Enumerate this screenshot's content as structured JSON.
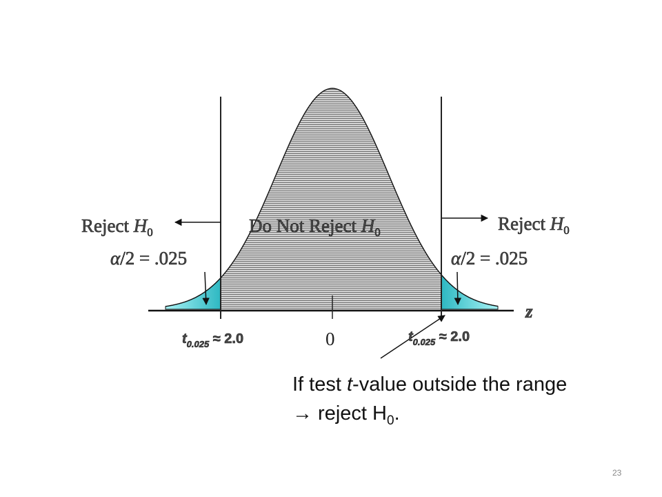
{
  "diagram": {
    "left_region": {
      "reject": "Reject ",
      "hypothesis": "H",
      "subscript": "0",
      "alpha_symbol": "α",
      "alpha_text": "/2 = .025"
    },
    "center_region": {
      "label": "Do Not Reject ",
      "hypothesis": "H",
      "subscript": "0"
    },
    "right_region": {
      "reject": "Reject ",
      "hypothesis": "H",
      "subscript": "0",
      "alpha_symbol": "α",
      "alpha_text": "/2 = .025"
    },
    "left_critical": {
      "t": "t",
      "subscript": "0.025",
      "approx": " ≈ 2.0"
    },
    "right_critical": {
      "t": "t",
      "subscript": "0.025",
      "approx": " ≈ 2.0"
    },
    "zero_label": "0",
    "axis_label": "z",
    "note_line1_a": "If test ",
    "note_line1_t": "t",
    "note_line1_b": "-value outside the range",
    "note_line2_a": "→ reject H",
    "note_line2_sub": "0",
    "note_line2_b": ".",
    "colors": {
      "tail": "#34c6cf",
      "tail_light": "#9deff2",
      "body_fill": "#c8c8c8",
      "stripe": "#7a7a7a"
    }
  },
  "page_number": "23"
}
